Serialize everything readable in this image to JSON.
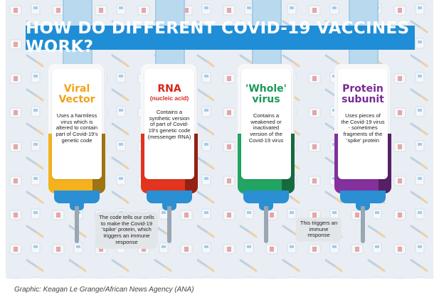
{
  "title": "HOW DO DIFFERENT COVID-19 VACCINES WORK?",
  "vaccines": [
    {
      "name_line1": "Viral",
      "name_line2": "Vector",
      "subtitle": "",
      "description": "Uses a harmless virus which is altered to contain part of Covid-19's genetic code",
      "title_color": "#f0a21a",
      "fill_color": "#f5b21e",
      "needle_note": "The code tells our cells to make the Covid-19 'spike' protein, which triggers an immune response"
    },
    {
      "name_line1": "RNA",
      "name_line2": "",
      "subtitle": "(nucleic acid)",
      "description": "Contains a synthetic version of part of Covid-19's genetic code (messenger RNA)",
      "title_color": "#d7261c",
      "fill_color": "#e3341f",
      "needle_note": ""
    },
    {
      "name_line1": "'Whole'",
      "name_line2": "virus",
      "subtitle": "",
      "description": "Contains a weakened or inactivated version of the Covid-19 virus",
      "title_color": "#1a9a58",
      "fill_color": "#22a463",
      "needle_note": "This triggers an immune response"
    },
    {
      "name_line1": "Protein",
      "name_line2": "subunit",
      "subtitle": "",
      "description": "Uses pieces of the Covid-19 virus - sometimes fragments of the 'spike' protein",
      "title_color": "#7a2a93",
      "fill_color": "#84309d",
      "needle_note": ""
    }
  ],
  "credit": "Graphic: Keagan Le Grange/African News Agency (ANA)",
  "colors": {
    "banner": "#1f8ed6",
    "background": "#e9eef4",
    "hub": "#2a8fd3"
  }
}
